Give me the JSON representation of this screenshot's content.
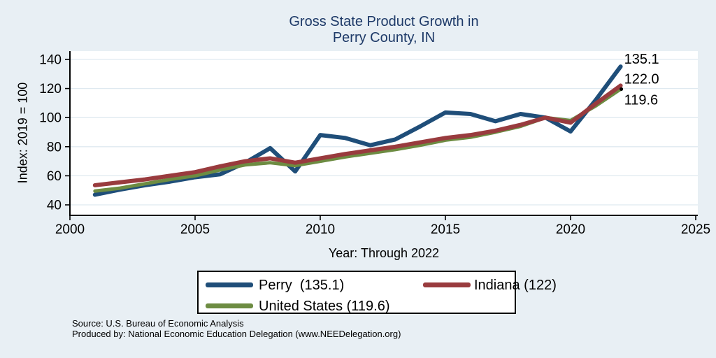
{
  "chart_data": {
    "type": "line",
    "title": "Gross State Product Growth in Perry County, IN",
    "title_line1": "Gross State Product Growth in",
    "title_line2": "Perry County, IN",
    "xlabel": "Year: Through 2022",
    "ylabel": "Index: 2019 = 100",
    "xlim": [
      2000,
      2025
    ],
    "ylim": [
      40,
      140
    ],
    "x_ticks": [
      2000,
      2005,
      2010,
      2015,
      2020,
      2025
    ],
    "y_ticks": [
      40,
      60,
      80,
      100,
      120,
      140
    ],
    "grid": "horizontal",
    "legend_position": "below-plot",
    "x": [
      2001,
      2002,
      2003,
      2004,
      2005,
      2006,
      2007,
      2008,
      2009,
      2010,
      2011,
      2012,
      2013,
      2014,
      2015,
      2016,
      2017,
      2018,
      2019,
      2020,
      2021,
      2022
    ],
    "series": [
      {
        "name": "Perry",
        "legend_label": "Perry  (135.1)",
        "color": "#1f4e79",
        "end_label": "135.1",
        "values": [
          47,
          50.5,
          53.5,
          56,
          59,
          61,
          69,
          79,
          63,
          88,
          86,
          81,
          85,
          94,
          103.5,
          102.5,
          97.5,
          102.5,
          100,
          90.5,
          112,
          135.1
        ]
      },
      {
        "name": "Indiana",
        "legend_label": "Indiana (122)",
        "color": "#993b3e",
        "end_label": "122.0",
        "end_dot": true,
        "values": [
          53.5,
          55.5,
          57.5,
          60,
          62.5,
          66.5,
          70,
          72,
          69,
          72,
          75,
          77.5,
          80,
          83,
          86,
          88,
          91,
          95,
          100,
          96.5,
          109.5,
          122
        ]
      },
      {
        "name": "United States",
        "legend_label": "United States (119.6)",
        "color": "#6d8c42",
        "end_label": "119.6",
        "values": [
          49.5,
          51.5,
          54.5,
          57.5,
          60,
          64,
          67.5,
          69,
          67,
          70,
          73,
          75.5,
          78,
          81,
          84.5,
          86.5,
          90,
          94,
          100,
          98,
          108,
          119.6
        ]
      }
    ]
  },
  "footer": {
    "source_line": "Source: U.S. Bureau of Economic Analysis",
    "produced_line": "Produced by: National Economic Education Delegation (www.NEEDelegation.org)"
  },
  "colors": {
    "background": "#e8eff4",
    "plot_background": "#ffffff",
    "gridline": "#dfe9f0",
    "axis": "#000000",
    "title_text": "#1e3a68"
  }
}
